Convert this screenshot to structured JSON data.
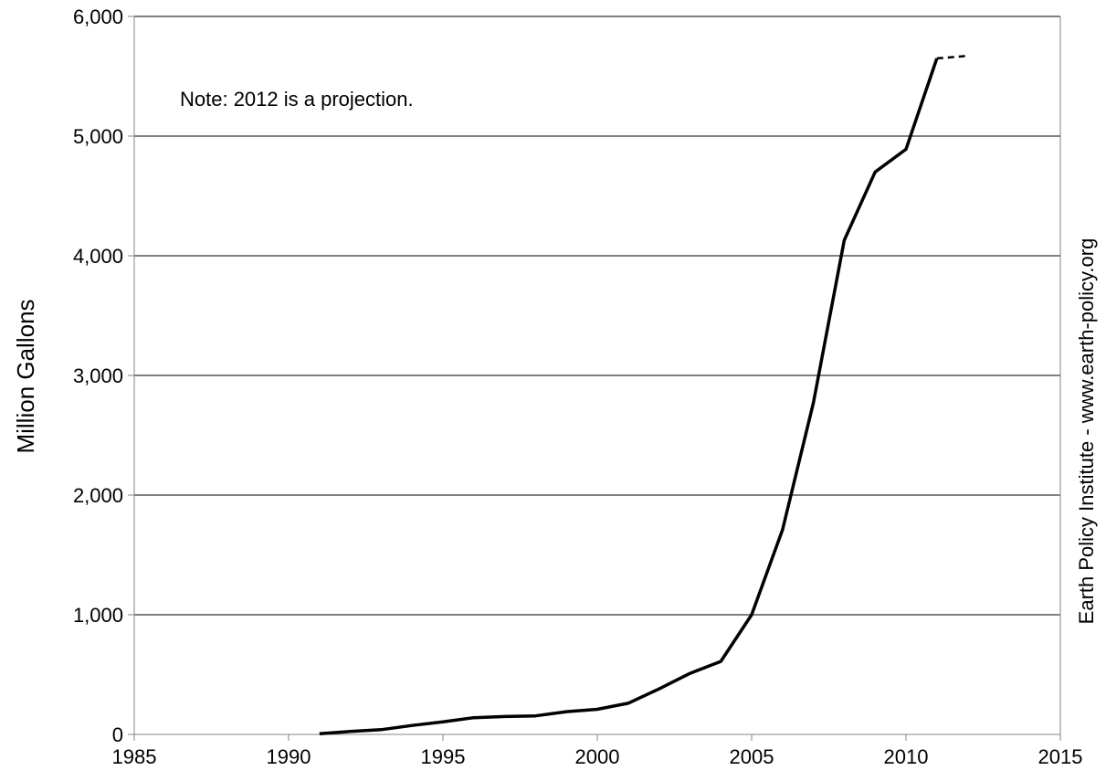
{
  "chart_data": {
    "type": "line",
    "title": "",
    "xlabel": "",
    "ylabel": "Million Gallons",
    "xlim": [
      1985,
      2015
    ],
    "ylim": [
      0,
      6000
    ],
    "x_ticks": [
      1985,
      1990,
      1995,
      2000,
      2005,
      2010,
      2015
    ],
    "x_tick_labels": [
      "1985",
      "1990",
      "1995",
      "2000",
      "2005",
      "2010",
      "2015"
    ],
    "y_ticks": [
      0,
      1000,
      2000,
      3000,
      4000,
      5000,
      6000
    ],
    "y_tick_labels": [
      "0",
      "1,000",
      "2,000",
      "3,000",
      "4,000",
      "5,000",
      "6,000"
    ],
    "grid": "horizontal",
    "legend": "none",
    "series": [
      {
        "line_style": "solid",
        "color": "#000000",
        "x": [
          1991,
          1992,
          1993,
          1994,
          1995,
          1996,
          1997,
          1998,
          1999,
          2000,
          2001,
          2002,
          2003,
          2004,
          2005,
          2006,
          2007,
          2008,
          2009,
          2010,
          2011
        ],
        "y": [
          5,
          25,
          40,
          75,
          105,
          140,
          150,
          155,
          190,
          210,
          260,
          380,
          510,
          610,
          1000,
          1710,
          2770,
          4130,
          4700,
          4890,
          5650
        ]
      },
      {
        "line_style": "dashed",
        "color": "#000000",
        "x": [
          2011,
          2012
        ],
        "y": [
          5650,
          5670
        ]
      }
    ],
    "annotations": [
      "Note: 2012 is a projection."
    ],
    "source": "Earth Policy Institute - www.earth-policy.org"
  }
}
